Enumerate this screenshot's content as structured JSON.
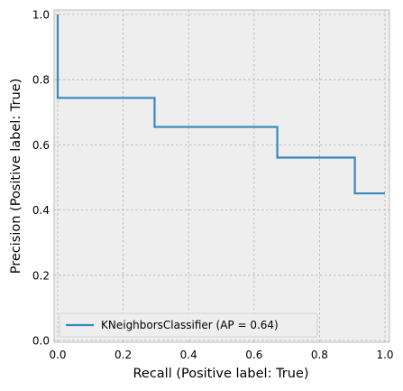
{
  "chart_data": {
    "type": "line",
    "title": "",
    "xlabel": "Recall (Positive label: True)",
    "ylabel": "Precision (Positive label: True)",
    "xlim": [
      0.0,
      1.0
    ],
    "ylim": [
      0.0,
      1.0
    ],
    "xticks": [
      0.0,
      0.2,
      0.4,
      0.6,
      0.8,
      1.0
    ],
    "yticks": [
      0.0,
      0.2,
      0.4,
      0.6,
      0.8,
      1.0
    ],
    "xtick_labels": [
      "0.0",
      "0.2",
      "0.4",
      "0.6",
      "0.8",
      "1.0"
    ],
    "ytick_labels": [
      "0.0",
      "0.2",
      "0.4",
      "0.6",
      "0.8",
      "1.0"
    ],
    "grid": true,
    "legend_position": "lower-left",
    "series": [
      {
        "name": "KNeighborsClassifier (AP = 0.64)",
        "color": "#348abd",
        "drawstyle": "steps-post",
        "x": [
          0.0,
          0.0,
          0.296,
          0.296,
          0.671,
          0.671,
          0.908,
          0.908,
          1.0
        ],
        "y": [
          1.0,
          0.744,
          0.744,
          0.655,
          0.655,
          0.561,
          0.561,
          0.451,
          0.451
        ]
      }
    ],
    "background_color": "#eeeeee",
    "grid_color": "#b2b2b2"
  }
}
